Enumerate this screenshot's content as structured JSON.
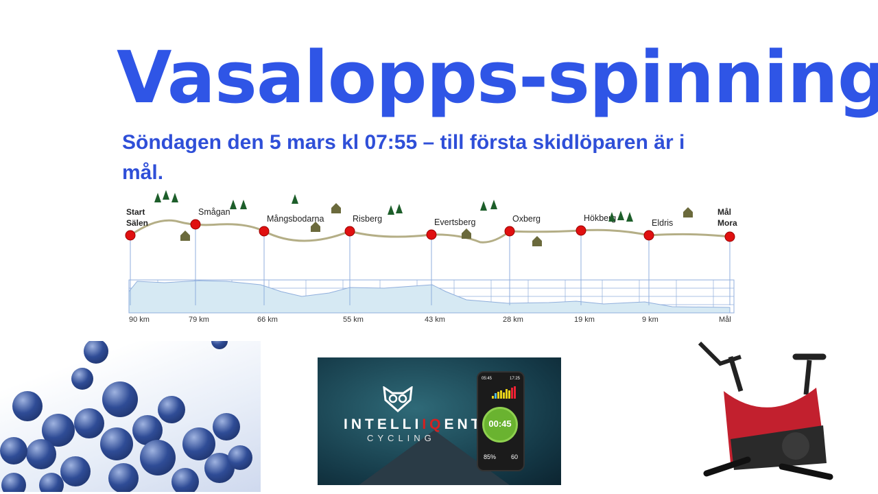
{
  "slide": {
    "title": "Vasalopps-spinning",
    "subtitle": "Söndagen den 5 mars kl 07:55 – till första skidlöparen är i mål."
  },
  "route_map": {
    "stations": [
      {
        "name_line1": "Start",
        "name_line2": "Sälen",
        "km": "90 km",
        "bold": true
      },
      {
        "name_line1": "Smågan",
        "km": "79 km"
      },
      {
        "name_line1": "Mångsbodarna",
        "km": "66 km"
      },
      {
        "name_line1": "Risberg",
        "km": "55 km"
      },
      {
        "name_line1": "Evertsberg",
        "km": "43 km"
      },
      {
        "name_line1": "Oxberg",
        "km": "28 km"
      },
      {
        "name_line1": "Hökberg",
        "km": "19 km"
      },
      {
        "name_line1": "Eldris",
        "km": "9 km"
      },
      {
        "name_line1": "Mål",
        "name_line2": "Mora",
        "km": "Mål",
        "bold": true
      }
    ],
    "colors": {
      "marker": "#e01010",
      "track": "#b4ae86",
      "profile_fill": "#d6e9f3",
      "grid": "#8faedc"
    }
  },
  "app_image": {
    "logo_part1": "INTELLI",
    "logo_iq": "IQ",
    "logo_part2": "ENT",
    "logo_sub": "CYCLING",
    "phone_time_left": "05:45",
    "phone_time_right": "17:25",
    "phone_timer": "00:45",
    "phone_stat1": "85%",
    "phone_stat2": "60"
  },
  "colors": {
    "title": "#2f55e6",
    "subtitle": "#2f4fd8"
  }
}
